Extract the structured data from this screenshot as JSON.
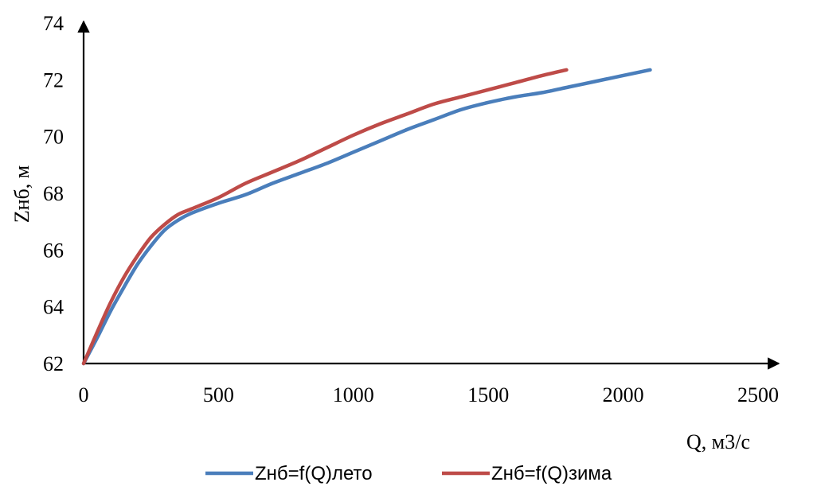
{
  "chart_data": {
    "type": "line",
    "title": "",
    "xlabel": "Q, м3/с",
    "ylabel": "Zнб, м",
    "xlim": [
      0,
      2500
    ],
    "ylim": [
      62,
      74
    ],
    "xticks": [
      0,
      500,
      1000,
      1500,
      2000,
      2500
    ],
    "yticks": [
      62,
      64,
      66,
      68,
      70,
      72,
      74
    ],
    "x_tick_labels": [
      "0",
      "500",
      "1000",
      "1500",
      "2000",
      "2500"
    ],
    "y_tick_labels": [
      "62",
      "64",
      "66",
      "68",
      "70",
      "72",
      "74"
    ],
    "grid": false,
    "legend_position": "bottom",
    "series": [
      {
        "name": "Zнб=f(Q)лето",
        "color": "#4a7ebb",
        "x": [
          0,
          50,
          100,
          150,
          200,
          250,
          300,
          350,
          400,
          500,
          600,
          700,
          800,
          900,
          1000,
          1100,
          1200,
          1300,
          1400,
          1500,
          1600,
          1700,
          1800,
          1900,
          2000,
          2100
        ],
        "y": [
          62,
          62.9,
          63.85,
          64.7,
          65.5,
          66.15,
          66.7,
          67.05,
          67.3,
          67.65,
          67.95,
          68.35,
          68.7,
          69.05,
          69.45,
          69.85,
          70.25,
          70.6,
          70.95,
          71.2,
          71.4,
          71.55,
          71.75,
          71.95,
          72.15,
          72.35
        ]
      },
      {
        "name": "Zнб=f(Q)зима",
        "color": "#be4b48",
        "x": [
          0,
          50,
          100,
          150,
          200,
          250,
          300,
          350,
          400,
          500,
          600,
          700,
          800,
          900,
          1000,
          1100,
          1200,
          1300,
          1400,
          1500,
          1600,
          1700,
          1790
        ],
        "y": [
          62,
          63.1,
          64.15,
          65.05,
          65.8,
          66.45,
          66.9,
          67.25,
          67.45,
          67.85,
          68.35,
          68.75,
          69.15,
          69.6,
          70.05,
          70.45,
          70.8,
          71.15,
          71.4,
          71.65,
          71.9,
          72.15,
          72.35
        ]
      }
    ]
  }
}
